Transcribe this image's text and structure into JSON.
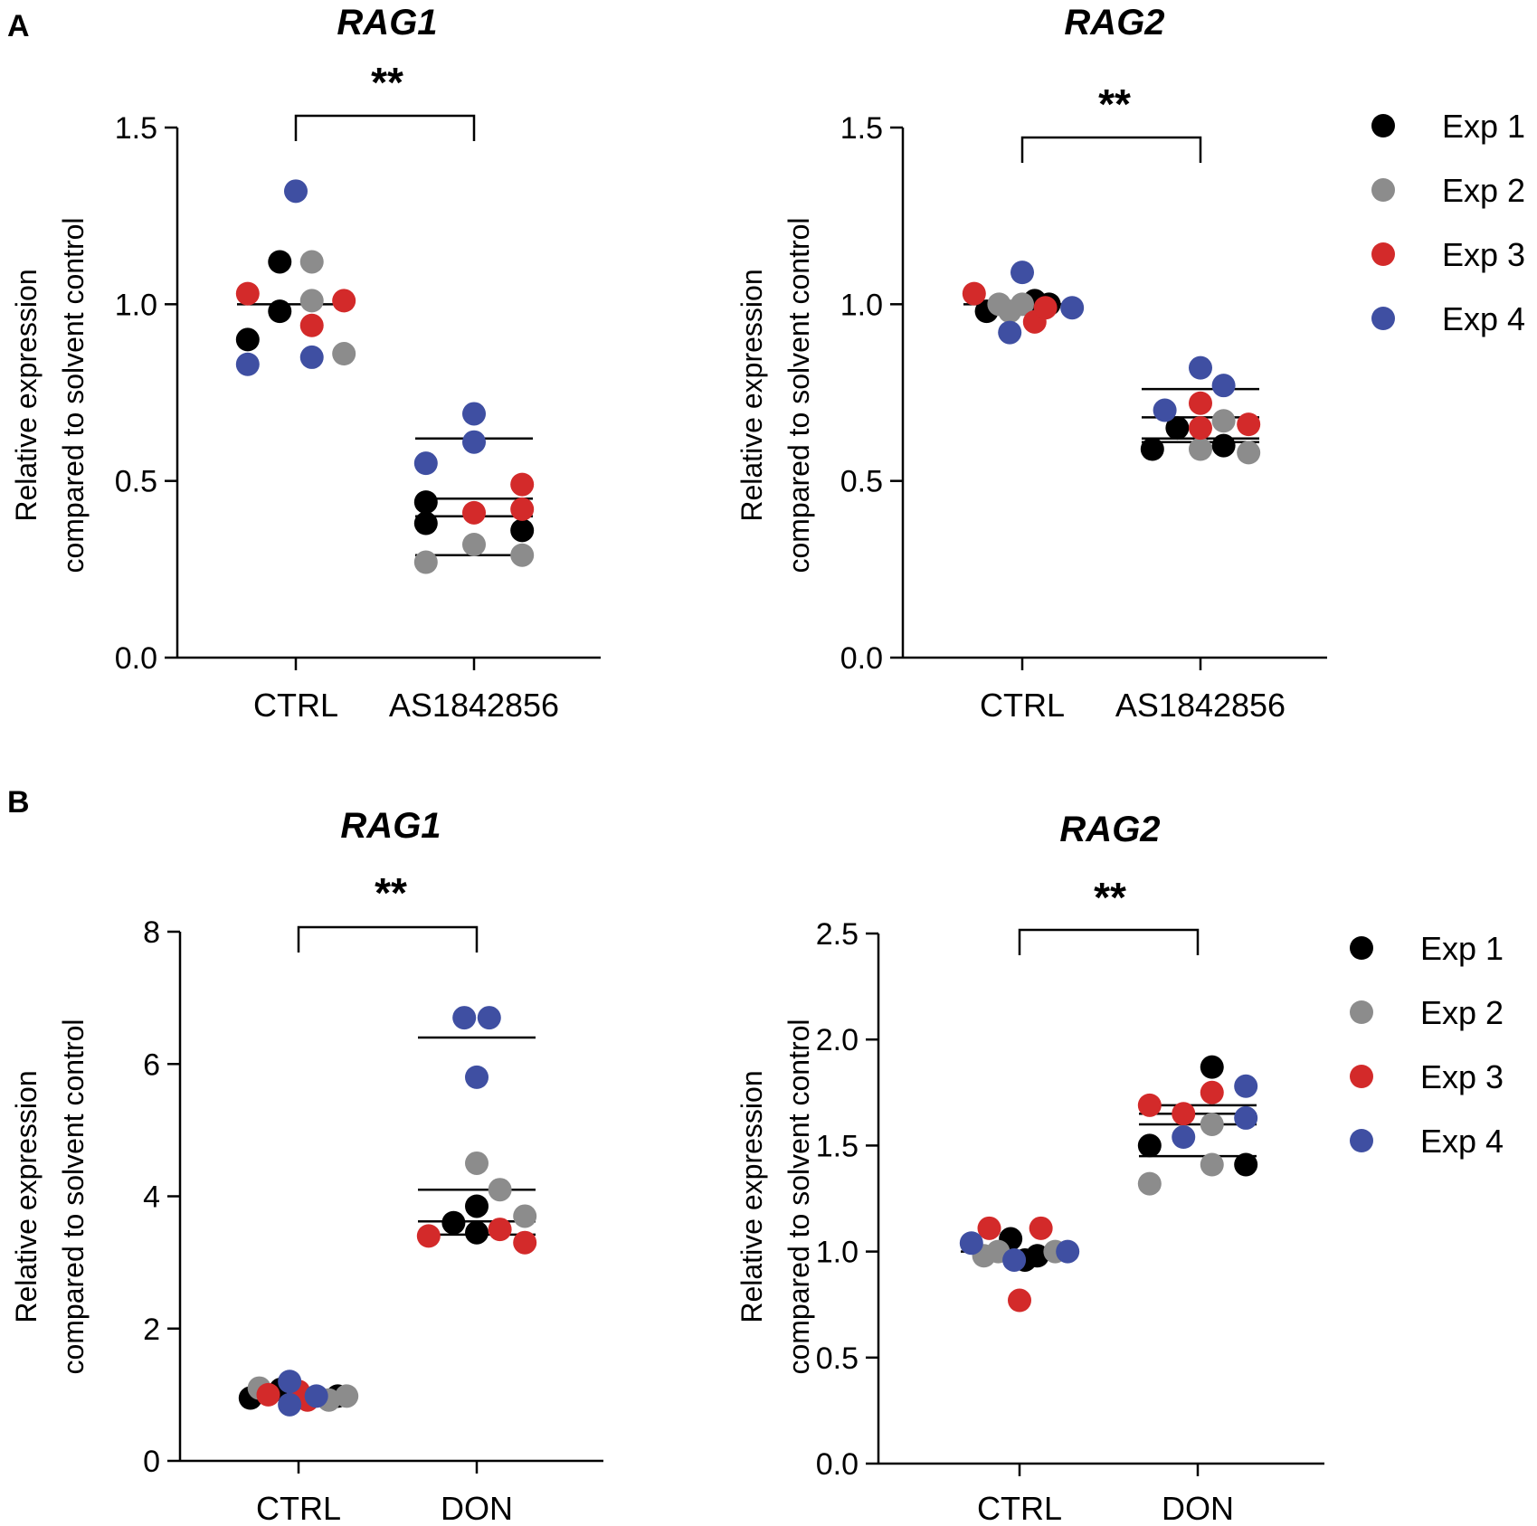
{
  "colors": {
    "Exp 1": "#000000",
    "Exp 2": "#8c8c8c",
    "Exp 3": "#d32a2a",
    "Exp 4": "#3f4fa2"
  },
  "panels": [
    {
      "label": "A"
    },
    {
      "label": "B"
    }
  ],
  "legend": [
    "Exp 1",
    "Exp 2",
    "Exp 3",
    "Exp 4"
  ],
  "chart_data": [
    {
      "type": "scatter",
      "title": "RAG1",
      "categories": [
        "CTRL",
        "AS1842856"
      ],
      "ylabel": [
        "Relative expression",
        "compared to solvent control"
      ],
      "ylim": [
        0,
        1.5
      ],
      "yticks": [
        0.0,
        0.5,
        1.0,
        1.5
      ],
      "tick_labels": [
        "0.0",
        "0.5",
        "1.0",
        "1.5"
      ],
      "significance": "**",
      "points": [
        {
          "cat": 0,
          "x": -0.27,
          "y": 0.9,
          "exp": "Exp 1"
        },
        {
          "cat": 0,
          "x": -0.09,
          "y": 1.12,
          "exp": "Exp 1"
        },
        {
          "cat": 0,
          "x": -0.09,
          "y": 0.98,
          "exp": "Exp 1"
        },
        {
          "cat": 0,
          "x": 0.09,
          "y": 1.12,
          "exp": "Exp 2"
        },
        {
          "cat": 0,
          "x": 0.09,
          "y": 1.01,
          "exp": "Exp 2"
        },
        {
          "cat": 0,
          "x": 0.27,
          "y": 0.86,
          "exp": "Exp 2"
        },
        {
          "cat": 0,
          "x": -0.27,
          "y": 1.03,
          "exp": "Exp 3"
        },
        {
          "cat": 0,
          "x": 0.09,
          "y": 0.94,
          "exp": "Exp 3"
        },
        {
          "cat": 0,
          "x": 0.27,
          "y": 1.01,
          "exp": "Exp 3"
        },
        {
          "cat": 0,
          "x": -0.27,
          "y": 0.83,
          "exp": "Exp 4"
        },
        {
          "cat": 0,
          "x": 0.0,
          "y": 1.32,
          "exp": "Exp 4"
        },
        {
          "cat": 0,
          "x": 0.09,
          "y": 0.85,
          "exp": "Exp 4"
        },
        {
          "cat": 1,
          "x": -0.27,
          "y": 0.44,
          "exp": "Exp 1"
        },
        {
          "cat": 1,
          "x": -0.27,
          "y": 0.38,
          "exp": "Exp 1"
        },
        {
          "cat": 1,
          "x": 0.27,
          "y": 0.36,
          "exp": "Exp 1"
        },
        {
          "cat": 1,
          "x": -0.27,
          "y": 0.27,
          "exp": "Exp 2"
        },
        {
          "cat": 1,
          "x": 0.0,
          "y": 0.32,
          "exp": "Exp 2"
        },
        {
          "cat": 1,
          "x": 0.27,
          "y": 0.29,
          "exp": "Exp 2"
        },
        {
          "cat": 1,
          "x": 0.0,
          "y": 0.41,
          "exp": "Exp 3"
        },
        {
          "cat": 1,
          "x": 0.27,
          "y": 0.49,
          "exp": "Exp 3"
        },
        {
          "cat": 1,
          "x": 0.27,
          "y": 0.42,
          "exp": "Exp 3"
        },
        {
          "cat": 1,
          "x": -0.27,
          "y": 0.55,
          "exp": "Exp 4"
        },
        {
          "cat": 1,
          "x": 0.0,
          "y": 0.69,
          "exp": "Exp 4"
        },
        {
          "cat": 1,
          "x": 0.0,
          "y": 0.61,
          "exp": "Exp 4"
        }
      ],
      "mean_lines": [
        {
          "cat": 0,
          "y": 1.0,
          "half_width": 0.33
        },
        {
          "cat": 1,
          "y": 0.62,
          "half_width": 0.33
        },
        {
          "cat": 1,
          "y": 0.45,
          "half_width": 0.33
        },
        {
          "cat": 1,
          "y": 0.4,
          "half_width": 0.33
        },
        {
          "cat": 1,
          "y": 0.29,
          "half_width": 0.33
        }
      ]
    },
    {
      "type": "scatter",
      "title": "RAG2",
      "categories": [
        "CTRL",
        "AS1842856"
      ],
      "ylabel": [
        "Relative expression",
        "compared to solvent control"
      ],
      "ylim": [
        0,
        1.5
      ],
      "yticks": [
        0.0,
        0.5,
        1.0,
        1.5
      ],
      "tick_labels": [
        "0.0",
        "0.5",
        "1.0",
        "1.5"
      ],
      "significance": "**",
      "points": [
        {
          "cat": 0,
          "x": -0.2,
          "y": 0.98,
          "exp": "Exp 1"
        },
        {
          "cat": 0,
          "x": 0.07,
          "y": 1.01,
          "exp": "Exp 1"
        },
        {
          "cat": 0,
          "x": 0.15,
          "y": 1.0,
          "exp": "Exp 1"
        },
        {
          "cat": 0,
          "x": -0.13,
          "y": 1.0,
          "exp": "Exp 2"
        },
        {
          "cat": 0,
          "x": -0.07,
          "y": 0.98,
          "exp": "Exp 2"
        },
        {
          "cat": 0,
          "x": 0.0,
          "y": 1.0,
          "exp": "Exp 2"
        },
        {
          "cat": 0,
          "x": -0.27,
          "y": 1.03,
          "exp": "Exp 3"
        },
        {
          "cat": 0,
          "x": 0.07,
          "y": 0.95,
          "exp": "Exp 3"
        },
        {
          "cat": 0,
          "x": 0.13,
          "y": 0.99,
          "exp": "Exp 3"
        },
        {
          "cat": 0,
          "x": 0.0,
          "y": 1.09,
          "exp": "Exp 4"
        },
        {
          "cat": 0,
          "x": -0.07,
          "y": 0.92,
          "exp": "Exp 4"
        },
        {
          "cat": 0,
          "x": 0.28,
          "y": 0.99,
          "exp": "Exp 4"
        },
        {
          "cat": 1,
          "x": -0.27,
          "y": 0.59,
          "exp": "Exp 1"
        },
        {
          "cat": 1,
          "x": -0.13,
          "y": 0.65,
          "exp": "Exp 1"
        },
        {
          "cat": 1,
          "x": 0.13,
          "y": 0.6,
          "exp": "Exp 1"
        },
        {
          "cat": 1,
          "x": 0.0,
          "y": 0.59,
          "exp": "Exp 2"
        },
        {
          "cat": 1,
          "x": 0.13,
          "y": 0.67,
          "exp": "Exp 2"
        },
        {
          "cat": 1,
          "x": 0.27,
          "y": 0.58,
          "exp": "Exp 2"
        },
        {
          "cat": 1,
          "x": 0.0,
          "y": 0.72,
          "exp": "Exp 3"
        },
        {
          "cat": 1,
          "x": 0.0,
          "y": 0.65,
          "exp": "Exp 3"
        },
        {
          "cat": 1,
          "x": 0.27,
          "y": 0.66,
          "exp": "Exp 3"
        },
        {
          "cat": 1,
          "x": -0.2,
          "y": 0.7,
          "exp": "Exp 4"
        },
        {
          "cat": 1,
          "x": 0.0,
          "y": 0.82,
          "exp": "Exp 4"
        },
        {
          "cat": 1,
          "x": 0.13,
          "y": 0.77,
          "exp": "Exp 4"
        }
      ],
      "mean_lines": [
        {
          "cat": 0,
          "y": 1.0,
          "half_width": 0.33
        },
        {
          "cat": 1,
          "y": 0.76,
          "half_width": 0.33
        },
        {
          "cat": 1,
          "y": 0.68,
          "half_width": 0.33
        },
        {
          "cat": 1,
          "y": 0.62,
          "half_width": 0.33
        },
        {
          "cat": 1,
          "y": 0.61,
          "half_width": 0.33
        }
      ]
    },
    {
      "type": "scatter",
      "title": "RAG1",
      "categories": [
        "CTRL",
        "DON"
      ],
      "ylabel": [
        "Relative expression",
        "compared to solvent control"
      ],
      "ylim": [
        0,
        8
      ],
      "yticks": [
        0,
        2,
        4,
        6,
        8
      ],
      "tick_labels": [
        "0",
        "2",
        "4",
        "6",
        "8"
      ],
      "significance": "**",
      "points": [
        {
          "cat": 0,
          "x": -0.27,
          "y": 0.95,
          "exp": "Exp 1"
        },
        {
          "cat": 0,
          "x": -0.1,
          "y": 1.08,
          "exp": "Exp 1"
        },
        {
          "cat": 0,
          "x": 0.22,
          "y": 0.98,
          "exp": "Exp 1"
        },
        {
          "cat": 0,
          "x": -0.22,
          "y": 1.1,
          "exp": "Exp 2"
        },
        {
          "cat": 0,
          "x": 0.17,
          "y": 0.92,
          "exp": "Exp 2"
        },
        {
          "cat": 0,
          "x": 0.27,
          "y": 0.98,
          "exp": "Exp 2"
        },
        {
          "cat": 0,
          "x": -0.17,
          "y": 1.0,
          "exp": "Exp 3"
        },
        {
          "cat": 0,
          "x": 0.0,
          "y": 1.05,
          "exp": "Exp 3"
        },
        {
          "cat": 0,
          "x": 0.05,
          "y": 0.92,
          "exp": "Exp 3"
        },
        {
          "cat": 0,
          "x": -0.05,
          "y": 1.2,
          "exp": "Exp 4"
        },
        {
          "cat": 0,
          "x": -0.05,
          "y": 0.85,
          "exp": "Exp 4"
        },
        {
          "cat": 0,
          "x": 0.1,
          "y": 0.98,
          "exp": "Exp 4"
        },
        {
          "cat": 1,
          "x": -0.13,
          "y": 3.6,
          "exp": "Exp 1"
        },
        {
          "cat": 1,
          "x": 0.0,
          "y": 3.85,
          "exp": "Exp 1"
        },
        {
          "cat": 1,
          "x": 0.0,
          "y": 3.45,
          "exp": "Exp 1"
        },
        {
          "cat": 1,
          "x": 0.0,
          "y": 4.5,
          "exp": "Exp 2"
        },
        {
          "cat": 1,
          "x": 0.13,
          "y": 4.1,
          "exp": "Exp 2"
        },
        {
          "cat": 1,
          "x": 0.27,
          "y": 3.7,
          "exp": "Exp 2"
        },
        {
          "cat": 1,
          "x": -0.27,
          "y": 3.4,
          "exp": "Exp 3"
        },
        {
          "cat": 1,
          "x": 0.13,
          "y": 3.5,
          "exp": "Exp 3"
        },
        {
          "cat": 1,
          "x": 0.27,
          "y": 3.3,
          "exp": "Exp 3"
        },
        {
          "cat": 1,
          "x": -0.07,
          "y": 6.7,
          "exp": "Exp 4"
        },
        {
          "cat": 1,
          "x": 0.07,
          "y": 6.7,
          "exp": "Exp 4"
        },
        {
          "cat": 1,
          "x": 0.0,
          "y": 5.8,
          "exp": "Exp 4"
        }
      ],
      "mean_lines": [
        {
          "cat": 0,
          "y": 1.0,
          "half_width": 0.33
        },
        {
          "cat": 1,
          "y": 6.4,
          "half_width": 0.33
        },
        {
          "cat": 1,
          "y": 4.1,
          "half_width": 0.33
        },
        {
          "cat": 1,
          "y": 3.62,
          "half_width": 0.33
        },
        {
          "cat": 1,
          "y": 3.42,
          "half_width": 0.33
        }
      ]
    },
    {
      "type": "scatter",
      "title": "RAG2",
      "categories": [
        "CTRL",
        "DON"
      ],
      "ylabel": [
        "Relative expression",
        "compared to solvent control"
      ],
      "ylim": [
        0,
        2.5
      ],
      "yticks": [
        0.0,
        0.5,
        1.0,
        1.5,
        2.0,
        2.5
      ],
      "tick_labels": [
        "0.0",
        "0.5",
        "1.0",
        "1.5",
        "2.0",
        "2.5"
      ],
      "significance": "**",
      "points": [
        {
          "cat": 0,
          "x": -0.05,
          "y": 1.06,
          "exp": "Exp 1"
        },
        {
          "cat": 0,
          "x": 0.03,
          "y": 0.96,
          "exp": "Exp 1"
        },
        {
          "cat": 0,
          "x": 0.1,
          "y": 0.98,
          "exp": "Exp 1"
        },
        {
          "cat": 0,
          "x": -0.2,
          "y": 0.98,
          "exp": "Exp 2"
        },
        {
          "cat": 0,
          "x": -0.12,
          "y": 1.0,
          "exp": "Exp 2"
        },
        {
          "cat": 0,
          "x": 0.2,
          "y": 1.0,
          "exp": "Exp 2"
        },
        {
          "cat": 0,
          "x": -0.17,
          "y": 1.11,
          "exp": "Exp 3"
        },
        {
          "cat": 0,
          "x": 0.0,
          "y": 0.77,
          "exp": "Exp 3"
        },
        {
          "cat": 0,
          "x": 0.12,
          "y": 1.11,
          "exp": "Exp 3"
        },
        {
          "cat": 0,
          "x": -0.27,
          "y": 1.04,
          "exp": "Exp 4"
        },
        {
          "cat": 0,
          "x": -0.03,
          "y": 0.96,
          "exp": "Exp 4"
        },
        {
          "cat": 0,
          "x": 0.27,
          "y": 1.0,
          "exp": "Exp 4"
        },
        {
          "cat": 1,
          "x": -0.27,
          "y": 1.5,
          "exp": "Exp 1"
        },
        {
          "cat": 1,
          "x": 0.08,
          "y": 1.87,
          "exp": "Exp 1"
        },
        {
          "cat": 1,
          "x": 0.27,
          "y": 1.41,
          "exp": "Exp 1"
        },
        {
          "cat": 1,
          "x": -0.27,
          "y": 1.32,
          "exp": "Exp 2"
        },
        {
          "cat": 1,
          "x": 0.08,
          "y": 1.6,
          "exp": "Exp 2"
        },
        {
          "cat": 1,
          "x": 0.08,
          "y": 1.41,
          "exp": "Exp 2"
        },
        {
          "cat": 1,
          "x": -0.27,
          "y": 1.69,
          "exp": "Exp 3"
        },
        {
          "cat": 1,
          "x": -0.08,
          "y": 1.65,
          "exp": "Exp 3"
        },
        {
          "cat": 1,
          "x": 0.08,
          "y": 1.75,
          "exp": "Exp 3"
        },
        {
          "cat": 1,
          "x": -0.08,
          "y": 1.54,
          "exp": "Exp 4"
        },
        {
          "cat": 1,
          "x": 0.27,
          "y": 1.78,
          "exp": "Exp 4"
        },
        {
          "cat": 1,
          "x": 0.27,
          "y": 1.63,
          "exp": "Exp 4"
        }
      ],
      "mean_lines": [
        {
          "cat": 0,
          "y": 1.0,
          "half_width": 0.33
        },
        {
          "cat": 1,
          "y": 1.69,
          "half_width": 0.33
        },
        {
          "cat": 1,
          "y": 1.65,
          "half_width": 0.33
        },
        {
          "cat": 1,
          "y": 1.6,
          "half_width": 0.33
        },
        {
          "cat": 1,
          "y": 1.45,
          "half_width": 0.33
        }
      ]
    }
  ]
}
